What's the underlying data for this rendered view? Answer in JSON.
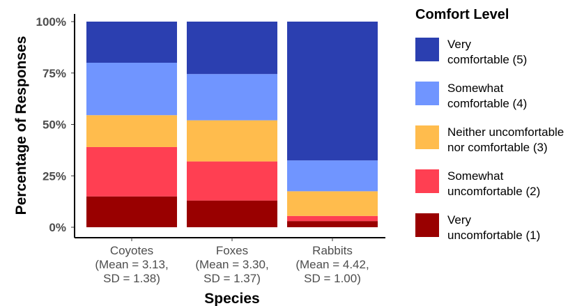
{
  "chart_data": {
    "type": "bar",
    "stacked": true,
    "ylabel": "Percentage of Responses",
    "xlabel": "Species",
    "ylim": [
      0,
      100
    ],
    "y_ticks": [
      "0%",
      "25%",
      "50%",
      "75%",
      "100%"
    ],
    "y_tick_values": [
      0,
      25,
      50,
      75,
      100
    ],
    "categories": [
      {
        "name": "Coyotes",
        "stats_line1": "(Mean = 3.13,",
        "stats_line2": "SD = 1.38)"
      },
      {
        "name": "Foxes",
        "stats_line1": "(Mean = 3.30,",
        "stats_line2": "SD = 1.37)"
      },
      {
        "name": "Rabbits",
        "stats_line1": "(Mean = 4.42,",
        "stats_line2": "SD = 1.00)"
      }
    ],
    "legend_title": "Comfort Level",
    "legend_position": "right",
    "series": [
      {
        "name_line1": "Very",
        "name_line2": "uncomfortable (1)",
        "color": "#990000",
        "values": [
          15,
          13,
          3
        ]
      },
      {
        "name_line1": "Somewhat",
        "name_line2": "uncomfortable (2)",
        "color": "#ff3f52",
        "values": [
          24,
          19,
          2.5
        ]
      },
      {
        "name_line1": "Neither uncomfortable",
        "name_line2": "nor comfortable (3)",
        "color": "#ffbc4d",
        "values": [
          15.5,
          20,
          12
        ]
      },
      {
        "name_line1": "Somewhat",
        "name_line2": "comfortable (4)",
        "color": "#7095ff",
        "values": [
          25.5,
          22.5,
          15
        ]
      },
      {
        "name_line1": "Very",
        "name_line2": "comfortable (5)",
        "color": "#2b3fb0",
        "values": [
          20,
          25.5,
          67.5
        ]
      }
    ]
  }
}
